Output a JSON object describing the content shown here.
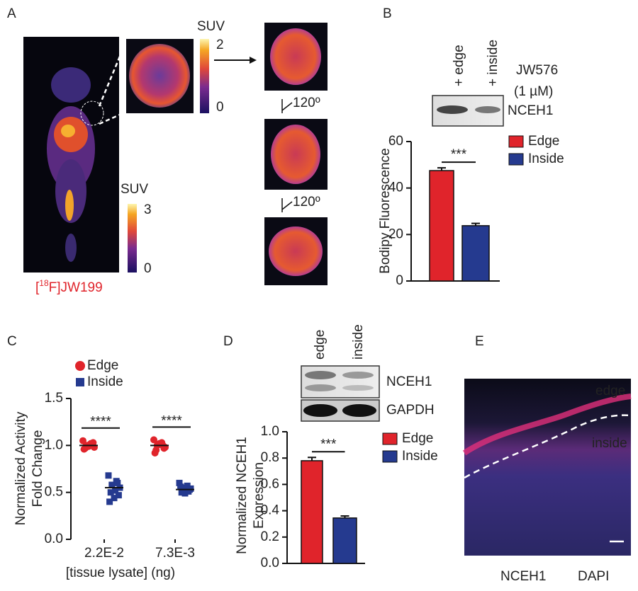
{
  "panel_labels": [
    "A",
    "B",
    "C",
    "D",
    "E"
  ],
  "panel_a": {
    "colorbar_zoom": {
      "title": "SUV",
      "max": "2",
      "min": "0"
    },
    "colorbar_whole": {
      "title": "SUV",
      "max": "3",
      "min": "0"
    },
    "rotation_labels": [
      "120º",
      "120º"
    ],
    "tracer": {
      "prefix": "[",
      "superscript": "18",
      "suffix": "F]JW199"
    }
  },
  "panel_b_blot": {
    "lanes": [
      "+ edge",
      "+ inside"
    ],
    "probe": "JW576",
    "concentration": "(1 µM)",
    "band": "NCEH1"
  },
  "panel_d_blot": {
    "lanes": [
      "edge",
      "inside"
    ],
    "bands": [
      "NCEH1",
      "GAPDH"
    ]
  },
  "panel_e": {
    "region_labels": [
      "edge",
      "inside"
    ],
    "stains": [
      "NCEH1",
      "DAPI"
    ]
  },
  "chart_data": [
    {
      "type": "bar",
      "ylabel": [
        "Bodipy Fluorescence"
      ],
      "series": [
        {
          "name": "Edge",
          "color": "#e0242b",
          "values": [
            47.5
          ],
          "errors": [
            1.2
          ]
        },
        {
          "name": "Inside",
          "color": "#253a8f",
          "values": [
            23.8
          ],
          "errors": [
            1.0
          ]
        }
      ],
      "significance": "***",
      "ylim": [
        0,
        60
      ],
      "yticks": [
        0,
        20,
        40,
        60
      ]
    },
    {
      "type": "scatter",
      "ylabel": [
        "Normalized Activity",
        "Fold Change"
      ],
      "xlabel": "[tissue lysate] (ng)",
      "categories": [
        "2.2E-2",
        "7.3E-3"
      ],
      "series": [
        {
          "name": "Edge",
          "color": "#e0242b",
          "marker": "circle",
          "values": [
            [
              1.05,
              1.02,
              1.0,
              0.98,
              1.01,
              0.97,
              1.03,
              0.99,
              0.96,
              1.0
            ],
            [
              1.06,
              1.03,
              1.0,
              0.98,
              1.01,
              0.95,
              0.97,
              1.02,
              0.92,
              1.0
            ]
          ],
          "means": [
            1.0,
            1.0
          ]
        },
        {
          "name": "Inside",
          "color": "#253a8f",
          "marker": "square",
          "values": [
            [
              0.68,
              0.62,
              0.58,
              0.55,
              0.52,
              0.5,
              0.47,
              0.44,
              0.4,
              0.6
            ],
            [
              0.6,
              0.57,
              0.55,
              0.54,
              0.52,
              0.5,
              0.53,
              0.49,
              0.56,
              0.51
            ]
          ],
          "means": [
            0.55,
            0.53
          ]
        }
      ],
      "significance": [
        "****",
        "****"
      ],
      "ylim": [
        0,
        1.5
      ],
      "yticks": [
        {
          "value": 0,
          "label": "0.0"
        },
        {
          "value": 0.5,
          "label": "0.5"
        },
        {
          "value": 1,
          "label": "1.0"
        },
        {
          "value": 1.5,
          "label": "1.5"
        }
      ]
    },
    {
      "type": "bar",
      "ylabel": [
        "Normalized NCEH1",
        "Expression"
      ],
      "series": [
        {
          "name": "Edge",
          "color": "#e0242b",
          "values": [
            0.78
          ],
          "errors": [
            0.025
          ]
        },
        {
          "name": "Inside",
          "color": "#253a8f",
          "values": [
            0.345
          ],
          "errors": [
            0.015
          ]
        }
      ],
      "significance": "***",
      "ylim": [
        0,
        1
      ],
      "yticks": [
        {
          "value": 0,
          "label": "0.0"
        },
        0.2,
        0.4,
        0.6,
        0.8,
        {
          "value": 1,
          "label": "1.0"
        }
      ]
    }
  ]
}
